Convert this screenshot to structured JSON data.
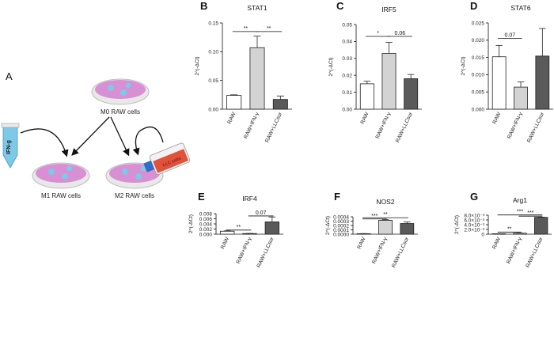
{
  "panel_A": {
    "letter": "A",
    "m0_label": "M0 RAW cells",
    "m1_label": "M1 RAW cells",
    "m2_label": "M2 RAW cells",
    "tube_label": "IFN-g",
    "flask_label": "LLC cells",
    "colors": {
      "dish_fill": "#d98fd3",
      "dish_rim": "#eeeeee",
      "cell": "#7ec8e8",
      "tube": "#7ec8e8",
      "flask_liquid": "#e0523a"
    }
  },
  "bar_colors": [
    "#ffffff",
    "#d3d3d3",
    "#5a5a5a"
  ],
  "ylabel": "2^(-ΔCt)",
  "chart_data": [
    {
      "panel": "B",
      "type": "bar",
      "title": "STAT1",
      "categories": [
        "RAW",
        "RAW+IFN-γ",
        "RAW+LLCsur"
      ],
      "values": [
        0.024,
        0.107,
        0.017
      ],
      "errors": [
        0.001,
        0.02,
        0.006
      ],
      "ylabel": "2^(-ΔCt)",
      "ylim": [
        0,
        0.15
      ],
      "yticks": [
        0.0,
        0.05,
        0.1,
        0.15
      ],
      "yticklabels": [
        "0.00",
        "0.05",
        "0.10",
        "0.15"
      ],
      "significance": [
        {
          "i": 0,
          "j": 1,
          "label": "**",
          "y": 0.135
        },
        {
          "i": 1,
          "j": 2,
          "label": "**",
          "y": 0.135
        }
      ]
    },
    {
      "panel": "C",
      "type": "bar",
      "title": "IRF5",
      "categories": [
        "RAW",
        "RAW+IFN-γ",
        "RAW+LLCsur"
      ],
      "values": [
        0.015,
        0.033,
        0.018
      ],
      "errors": [
        0.0015,
        0.0065,
        0.0025
      ],
      "ylabel": "2^(-ΔCt)",
      "ylim": [
        0,
        0.05
      ],
      "yticks": [
        0.0,
        0.01,
        0.02,
        0.03,
        0.04,
        0.05
      ],
      "yticklabels": [
        "0.00",
        "0.01",
        "0.02",
        "0.03",
        "0.04",
        "0.05"
      ],
      "significance": [
        {
          "i": 0,
          "j": 1,
          "label": "*",
          "y": 0.043
        },
        {
          "i": 1,
          "j": 2,
          "label": "0.06",
          "y": 0.043
        }
      ]
    },
    {
      "panel": "D",
      "type": "bar",
      "title": "STAT6",
      "categories": [
        "RAW",
        "RAW+IFN-γ",
        "RAW+LLCsur"
      ],
      "values": [
        0.0152,
        0.0064,
        0.0154
      ],
      "errors": [
        0.0033,
        0.0015,
        0.008
      ],
      "ylabel": "2^(-ΔCt)",
      "ylim": [
        0,
        0.025
      ],
      "yticks": [
        0.0,
        0.005,
        0.01,
        0.015,
        0.02,
        0.025
      ],
      "yticklabels": [
        "0.000",
        "0.005",
        "0.010",
        "0.015",
        "0.020",
        "0.025"
      ],
      "significance": [
        {
          "i": 0,
          "j": 1,
          "label": "0.07",
          "y": 0.0205
        }
      ]
    },
    {
      "panel": "E",
      "type": "bar",
      "title": "IRF4",
      "categories": [
        "RAW",
        "RAW+IFN-γ",
        "RAW+LLCsur"
      ],
      "values": [
        0.00115,
        0.00025,
        0.0048
      ],
      "errors": [
        0.00015,
        5e-05,
        0.0019
      ],
      "ylabel": "2^(-ΔCt)",
      "ylim": [
        0,
        0.008
      ],
      "yticks": [
        0.0,
        0.002,
        0.004,
        0.006,
        0.008
      ],
      "yticklabels": [
        "0.000",
        "0.002",
        "0.004",
        "0.006",
        "0.008"
      ],
      "significance": [
        {
          "i": 0,
          "j": 1,
          "label": "**",
          "y": 0.0016
        },
        {
          "i": 1,
          "j": 2,
          "label": "0.07",
          "y": 0.0071
        }
      ]
    },
    {
      "panel": "F",
      "type": "bar",
      "title": "NOS2",
      "categories": [
        "RAW",
        "RAW+IFN-γ",
        "RAW+LLCsur"
      ],
      "values": [
        1.2e-05,
        0.00032,
        0.000245
      ],
      "errors": [
        2e-06,
        1.4e-05,
        3.5e-05
      ],
      "ylabel": "2^(-ΔCt)",
      "ylim": [
        0,
        0.0004
      ],
      "yticks": [
        0.0,
        0.0001,
        0.0002,
        0.0003,
        0.0004
      ],
      "yticklabels": [
        "0.0000",
        "0.0001",
        "0.0002",
        "0.0003",
        "0.0004"
      ],
      "significance": [
        {
          "i": 0,
          "j": 2,
          "label": "**",
          "y": 0.00038
        },
        {
          "i": 0,
          "j": 1,
          "label": "***",
          "y": 0.00035
        }
      ]
    },
    {
      "panel": "G",
      "type": "bar",
      "title": "Arg1",
      "categories": [
        "RAW",
        "RAW+IFN-γ",
        "RAW+LLCsur"
      ],
      "values": [
        2e-06,
        0.00043,
        0.0071
      ],
      "errors": [
        1e-06,
        3e-05,
        8e-05
      ],
      "ylabel": "2^(-ΔCt)",
      "ylim": [
        0,
        0.008
      ],
      "yticks": [
        0.0,
        0.002,
        0.004,
        0.006,
        0.008
      ],
      "yticklabels": [
        "0",
        "2.0×10⁻³",
        "4.0×10⁻³",
        "6.0×10⁻³",
        "8.0×10⁻³"
      ],
      "significance": [
        {
          "i": 0,
          "j": 2,
          "label": "***",
          "y": 0.0081
        },
        {
          "i": 1,
          "j": 2,
          "label": "***",
          "y": 0.0076
        },
        {
          "i": 0,
          "j": 1,
          "label": "**",
          "y": 0.0009
        }
      ]
    }
  ]
}
